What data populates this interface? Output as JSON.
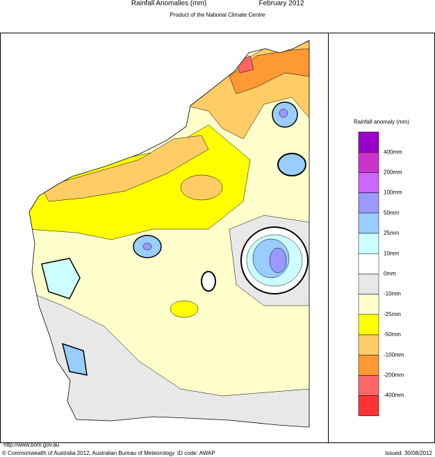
{
  "header": {
    "title": "Rainfall Anomalies (mm)",
    "period": "February 2012",
    "subtitle": "Product of the National Climate Centre"
  },
  "legend": {
    "title": "Rainfall anomaly (mm)",
    "colors": [
      "#9900cc",
      "#cc33cc",
      "#cc66ff",
      "#9999ff",
      "#99ccff",
      "#ccffff",
      "#ffffff",
      "#e8e8e8",
      "#ffffcc",
      "#ffff00",
      "#ffcc66",
      "#ff9933",
      "#ff6666",
      "#ff3333"
    ],
    "labels": [
      "400mm",
      "200mm",
      "100mm",
      "50mm",
      "25mm",
      "10mm",
      "0mm",
      "-10mm",
      "-25mm",
      "-50mm",
      "-100mm",
      "-200mm",
      "-400mm"
    ]
  },
  "footer": {
    "url": "http://www.bom.gov.au",
    "copyright": "© Commonwealth of Australia 2012, Australian Bureau of Meteorology",
    "id_code": "ID code: AWAP",
    "issued": "Issued: 30/08/2012"
  }
}
